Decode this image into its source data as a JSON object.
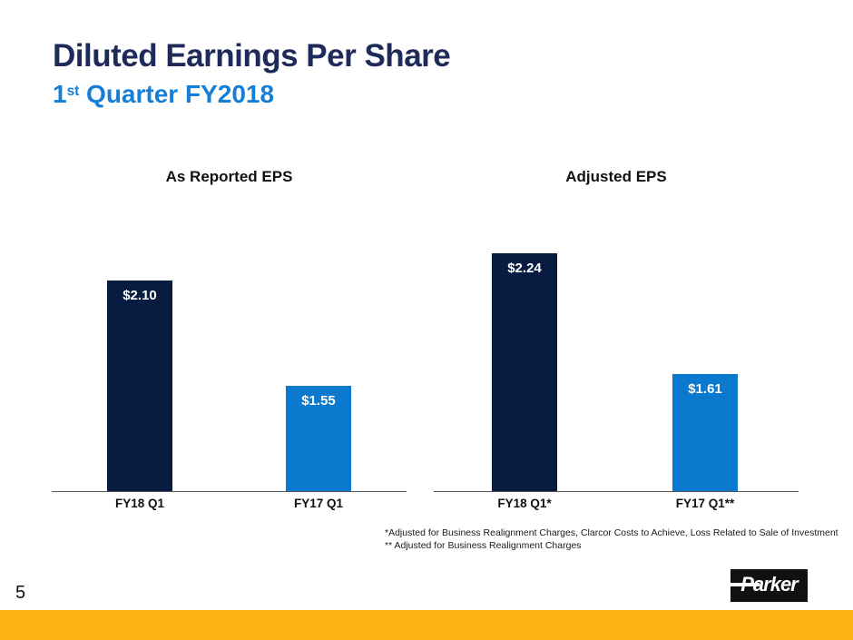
{
  "slide": {
    "title": "Diluted Earnings Per Share",
    "subtitle_prefix": "1",
    "subtitle_sup": "st",
    "subtitle_rest": " Quarter FY2018",
    "page_number": "5",
    "footnote_line1": "*Adjusted for Business Realignment Charges, Clarcor Costs to Achieve, Loss Related to Sale of Investment",
    "footnote_line2": "** Adjusted for Business Realignment Charges",
    "logo_text": "Parker"
  },
  "colors": {
    "title_navy": "#1e2a5a",
    "subtitle_blue": "#157fd8",
    "bar_navy": "#081b41",
    "bar_blue": "#0b79cd",
    "footer_yellow": "#fdb515",
    "axis_gray": "#555555"
  },
  "chart_data": [
    {
      "type": "bar",
      "title": "As Reported EPS",
      "categories": [
        "FY18 Q1",
        "FY17 Q1"
      ],
      "values": [
        2.1,
        1.55
      ],
      "value_labels": [
        "$2.10",
        "$1.55"
      ],
      "bar_colors": [
        "#081b41",
        "#0b79cd"
      ],
      "xlabel": "",
      "ylabel": "",
      "ylim": [
        1.0,
        2.35
      ],
      "grid": false,
      "legend": false,
      "value_label_position": "inside-top",
      "value_label_color": "#ffffff"
    },
    {
      "type": "bar",
      "title": "Adjusted EPS",
      "categories": [
        "FY18 Q1*",
        "FY17 Q1**"
      ],
      "values": [
        2.24,
        1.61
      ],
      "value_labels": [
        "$2.24",
        "$1.61"
      ],
      "bar_colors": [
        "#081b41",
        "#0b79cd"
      ],
      "xlabel": "",
      "ylabel": "",
      "ylim": [
        1.0,
        2.35
      ],
      "grid": false,
      "legend": false,
      "value_label_position": "inside-top",
      "value_label_color": "#ffffff"
    }
  ]
}
